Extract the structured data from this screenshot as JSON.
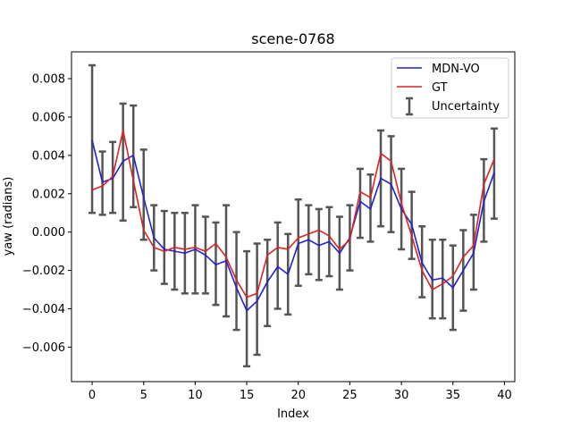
{
  "chart_data": {
    "type": "line",
    "title": "scene-0768",
    "xlabel": "Index",
    "ylabel": "yaw (radians)",
    "xlim": [
      -2,
      41
    ],
    "ylim": [
      -0.0078,
      0.0094
    ],
    "xticks": [
      0,
      5,
      10,
      15,
      20,
      25,
      30,
      35,
      40
    ],
    "yticks": [
      -0.006,
      -0.004,
      -0.002,
      0.0,
      0.002,
      0.004,
      0.006,
      0.008
    ],
    "ytick_labels": [
      "−0.006",
      "−0.004",
      "−0.002",
      "0.000",
      "0.002",
      "0.004",
      "0.006",
      "0.008"
    ],
    "grid": false,
    "legend_position": "upper right",
    "x": [
      0,
      1,
      2,
      3,
      4,
      5,
      6,
      7,
      8,
      9,
      10,
      11,
      12,
      13,
      14,
      15,
      16,
      17,
      18,
      19,
      20,
      21,
      22,
      23,
      24,
      25,
      26,
      27,
      28,
      29,
      30,
      31,
      32,
      33,
      34,
      35,
      36,
      37,
      38,
      39
    ],
    "series": [
      {
        "name": "MDN-VO",
        "color": "#2222cc",
        "values": [
          0.0048,
          0.0026,
          0.0028,
          0.0037,
          0.004,
          0.0018,
          -0.0003,
          -0.0009,
          -0.001,
          -0.0011,
          -0.0009,
          -0.0012,
          -0.0017,
          -0.0015,
          -0.0029,
          -0.0041,
          -0.0036,
          -0.0026,
          -0.0018,
          -0.0022,
          -0.0006,
          -0.0004,
          -0.0007,
          -0.0005,
          -0.0011,
          -0.0003,
          0.0016,
          0.0012,
          0.0028,
          0.0025,
          0.0012,
          0.0004,
          -0.0016,
          -0.0025,
          -0.0024,
          -0.0029,
          -0.002,
          -0.0011,
          0.0016,
          0.0031
        ]
      },
      {
        "name": "GT",
        "color": "#dd2222",
        "values": [
          0.0022,
          0.0024,
          0.0029,
          0.0053,
          0.0027,
          0.0001,
          -0.0008,
          -0.001,
          -0.0008,
          -0.0009,
          -0.0008,
          -0.001,
          -0.0006,
          -0.0013,
          -0.0025,
          -0.0034,
          -0.0032,
          -0.0012,
          -0.0008,
          -0.0009,
          -0.0003,
          -0.0001,
          0.0001,
          -0.0002,
          -0.0009,
          -0.0004,
          0.0021,
          0.0018,
          0.0041,
          0.0037,
          0.0015,
          -0.0002,
          -0.002,
          -0.003,
          -0.0027,
          -0.0023,
          -0.0013,
          -0.0007,
          0.0025,
          0.0038
        ]
      }
    ],
    "uncertainty": {
      "name": "Uncertainty",
      "color": "#555555",
      "upper": [
        0.0087,
        0.0042,
        0.0047,
        0.0067,
        0.0066,
        0.0043,
        0.0014,
        0.0011,
        0.001,
        0.001,
        0.0014,
        0.0008,
        0.0005,
        0.0014,
        0.0,
        -0.001,
        -0.0006,
        -0.0004,
        0.0005,
        -0.0001,
        0.0017,
        0.0014,
        0.0012,
        0.0013,
        0.0008,
        0.0014,
        0.0033,
        0.003,
        0.0053,
        0.005,
        0.0033,
        0.0021,
        0.0003,
        -0.0004,
        -0.0004,
        -0.0007,
        0.0001,
        0.0009,
        0.0038,
        0.0054
      ],
      "lower": [
        0.001,
        0.0009,
        0.001,
        0.0006,
        0.0013,
        -0.0004,
        -0.002,
        -0.0027,
        -0.003,
        -0.0032,
        -0.0032,
        -0.0032,
        -0.0038,
        -0.0044,
        -0.0051,
        -0.007,
        -0.0064,
        -0.0049,
        -0.004,
        -0.0043,
        -0.0028,
        -0.0022,
        -0.0025,
        -0.0023,
        -0.003,
        -0.002,
        -0.0003,
        -0.0005,
        0.0003,
        0.0,
        -0.0009,
        -0.0014,
        -0.0034,
        -0.0045,
        -0.0045,
        -0.0051,
        -0.0041,
        -0.003,
        -0.0005,
        0.0007
      ]
    }
  }
}
